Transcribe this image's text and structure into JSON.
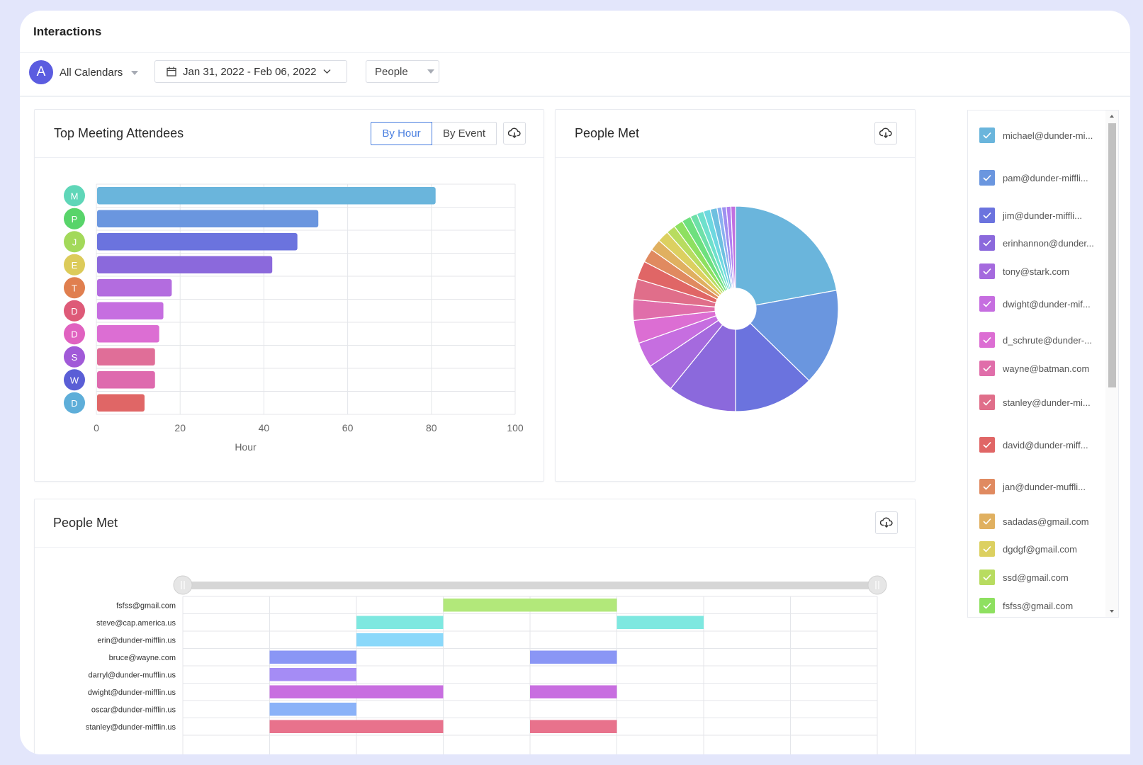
{
  "app": {
    "title": "Interactions"
  },
  "toolbar": {
    "avatar_letter": "A",
    "calendar_label": "All Calendars",
    "date_range": "Jan 31, 2022 - Feb 06, 2022",
    "group_by": "People"
  },
  "top_attendees": {
    "title": "Top Meeting Attendees",
    "by_hour_label": "By Hour",
    "by_event_label": "By Event",
    "selected_tab": "By Hour"
  },
  "people_met_pie": {
    "title": "People Met"
  },
  "people_met_timeline": {
    "title": "People Met"
  },
  "chart_data": [
    {
      "type": "bar",
      "orientation": "horizontal",
      "categories": [
        "M",
        "P",
        "J",
        "E",
        "T",
        "D",
        "D",
        "S",
        "W",
        "D"
      ],
      "category_colors": [
        "#5fd6b8",
        "#58d46a",
        "#a3d95a",
        "#dccb5a",
        "#e07f4f",
        "#de5a78",
        "#e062c0",
        "#a15ad8",
        "#5a5ed6",
        "#5eaed9"
      ],
      "values": [
        81,
        53,
        48,
        42,
        18,
        16,
        15,
        14,
        14,
        11.5
      ],
      "bar_colors": [
        "#6ab5dc",
        "#6a96df",
        "#6b73de",
        "#8b69dc",
        "#b36cdf",
        "#c66ee0",
        "#dc6ed3",
        "#e06e98",
        "#de6aae",
        "#e06666"
      ],
      "xlabel": "Hour",
      "xlim": [
        0,
        100
      ],
      "xticks": [
        "0",
        "20",
        "40",
        "60",
        "80",
        "100"
      ],
      "grid": true
    },
    {
      "type": "pie",
      "donut": true,
      "values": [
        61,
        42,
        35,
        30,
        13,
        11,
        10,
        9,
        9,
        8,
        6,
        5,
        5,
        4,
        4,
        4,
        3,
        3,
        3,
        3,
        2,
        2,
        2,
        2
      ],
      "colors": [
        "#6ab5dc",
        "#6a96df",
        "#6b73de",
        "#8b69dc",
        "#a56ade",
        "#c66ee0",
        "#dc6ed3",
        "#e06eaa",
        "#e06e8a",
        "#e06666",
        "#e08a60",
        "#e0b060",
        "#dcd060",
        "#b8dc60",
        "#8ee060",
        "#6ee07e",
        "#6ee0a8",
        "#6ee0cc",
        "#6ed8e0",
        "#6ec0e0",
        "#8ab0f0",
        "#9e90f0",
        "#b080f0",
        "#c070e0"
      ]
    },
    {
      "type": "timeline",
      "rows": [
        "fsfss@gmail.com",
        "steve@cap.america.us",
        "erin@dunder-mifflin.us",
        "bruce@wayne.com",
        "darryl@dunder-mufflin.us",
        "dwight@dunder-mifflin.us",
        "oscar@dunder-mifflin.us",
        "stanley@dunder-mifflin.us"
      ],
      "segments": [
        {
          "row": 0,
          "start": 3,
          "end": 5,
          "color": "#b2e87a"
        },
        {
          "row": 1,
          "start": 2,
          "end": 3,
          "color": "#7ee8e0"
        },
        {
          "row": 1,
          "start": 5,
          "end": 6,
          "color": "#7ee8e0"
        },
        {
          "row": 2,
          "start": 2,
          "end": 3,
          "color": "#8ad8fa"
        },
        {
          "row": 3,
          "start": 1,
          "end": 2,
          "color": "#8a96f5"
        },
        {
          "row": 3,
          "start": 4,
          "end": 5,
          "color": "#8a96f5"
        },
        {
          "row": 4,
          "start": 1,
          "end": 2,
          "color": "#a58cf5"
        },
        {
          "row": 5,
          "start": 1,
          "end": 3,
          "color": "#c86ee0"
        },
        {
          "row": 5,
          "start": 4,
          "end": 5,
          "color": "#c86ee0"
        },
        {
          "row": 6,
          "start": 1,
          "end": 2,
          "color": "#8ab2f8"
        },
        {
          "row": 7,
          "start": 1,
          "end": 3,
          "color": "#e8728c"
        },
        {
          "row": 7,
          "start": 4,
          "end": 5,
          "color": "#e8728c"
        }
      ],
      "columns": 8
    }
  ],
  "legend": {
    "items": [
      {
        "label": "michael@dunder-mi...",
        "color": "#6ab5dc"
      },
      {
        "label": "pam@dunder-miffli...",
        "color": "#6a96df"
      },
      {
        "label": "jim@dunder-miffli...",
        "color": "#6b73de"
      },
      {
        "label": "erinhannon@dunder...",
        "color": "#8b69dc"
      },
      {
        "label": "tony@stark.com",
        "color": "#a56ade"
      },
      {
        "label": "dwight@dunder-mif...",
        "color": "#c66ee0"
      },
      {
        "label": "d_schrute@dunder-...",
        "color": "#dc6ed3"
      },
      {
        "label": "wayne@batman.com",
        "color": "#e06eaa"
      },
      {
        "label": "stanley@dunder-mi...",
        "color": "#e06e8a"
      },
      {
        "label": "david@dunder-miff...",
        "color": "#e06666"
      },
      {
        "label": "jan@dunder-muffli...",
        "color": "#e08a60"
      },
      {
        "label": "sadadas@gmail.com",
        "color": "#e0b060"
      },
      {
        "label": "dgdgf@gmail.com",
        "color": "#dcd060"
      },
      {
        "label": "ssd@gmail.com",
        "color": "#b8dc60"
      },
      {
        "label": "fsfss@gmail.com",
        "color": "#8ee060"
      }
    ]
  }
}
